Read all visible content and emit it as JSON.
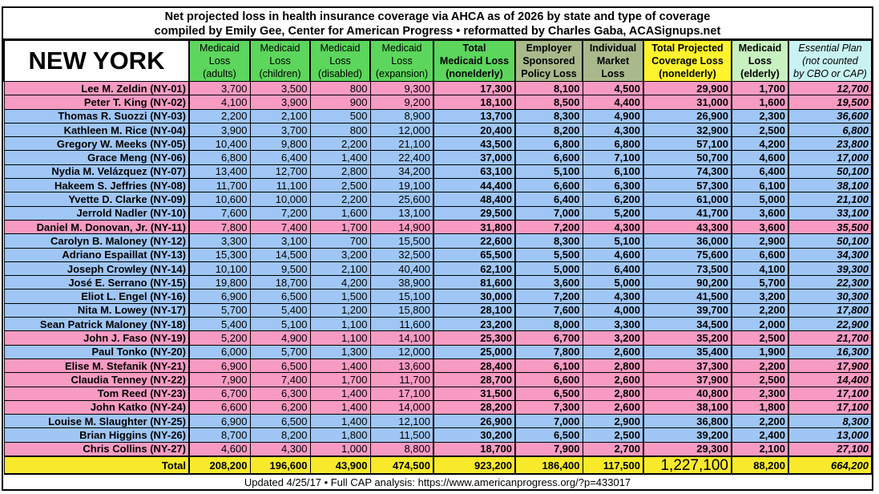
{
  "title_line1": "Net projected loss in health insurance coverage via AHCA as of 2026 by state and type of coverage",
  "title_line2": "compiled by Emily Gee, Center for American Progress  •  reformatted by Charles Gaba, ACASignups.net",
  "state": "NEW YORK",
  "colors": {
    "republican_row": "#f79bc3",
    "democrat_row": "#9fc6f5",
    "medicaid_header": "#5cd65c",
    "employer_header": "#aab98c",
    "total_header": "#fff22e",
    "elderly_header": "#c8f0c0",
    "essential_header": "#c9f3f3",
    "total_row": "#f8ea2b"
  },
  "columns": [
    {
      "lines": [
        "Medicaid",
        "Loss",
        "(adults)"
      ],
      "bg": "#5cd65c",
      "bold": false,
      "italic": false
    },
    {
      "lines": [
        "Medicaid",
        "Loss",
        "(children)"
      ],
      "bg": "#5cd65c",
      "bold": false,
      "italic": false
    },
    {
      "lines": [
        "Medicaid",
        "Loss",
        "(disabled)"
      ],
      "bg": "#5cd65c",
      "bold": false,
      "italic": false
    },
    {
      "lines": [
        "Medicaid",
        "Loss",
        "(expansion)"
      ],
      "bg": "#5cd65c",
      "bold": false,
      "italic": false
    },
    {
      "lines": [
        "Total",
        "Medicaid Loss",
        "(nonelderly)"
      ],
      "bg": "#5cd65c",
      "bold": true,
      "italic": false
    },
    {
      "lines": [
        "Employer",
        "Sponsored",
        "Policy Loss"
      ],
      "bg": "#aab98c",
      "bold": true,
      "italic": false
    },
    {
      "lines": [
        "Individual",
        "Market",
        "Loss"
      ],
      "bg": "#aab98c",
      "bold": true,
      "italic": false
    },
    {
      "lines": [
        "Total Projected",
        "Coverage Loss",
        "(nonelderly)"
      ],
      "bg": "#fff22e",
      "bold": true,
      "italic": false
    },
    {
      "lines": [
        "Medicaid",
        "Loss",
        "(elderly)"
      ],
      "bg": "#c8f0c0",
      "bold": true,
      "italic": false
    },
    {
      "lines": [
        "Essential Plan",
        "(not counted",
        "by CBO or CAP)"
      ],
      "bg": "#c9f3f3",
      "bold": false,
      "italic": true
    }
  ],
  "rows": [
    {
      "name": "Lee M. Zeldin (NY-01)",
      "color": "#f79bc3",
      "values": [
        "3,700",
        "3,500",
        "800",
        "9,300",
        "17,300",
        "8,100",
        "4,500",
        "29,900",
        "1,700",
        "12,700"
      ]
    },
    {
      "name": "Peter T. King (NY-02)",
      "color": "#f79bc3",
      "values": [
        "4,100",
        "3,900",
        "900",
        "9,200",
        "18,100",
        "8,500",
        "4,400",
        "31,000",
        "1,600",
        "19,500"
      ]
    },
    {
      "name": "Thomas R. Suozzi (NY-03)",
      "color": "#9fc6f5",
      "values": [
        "2,200",
        "2,100",
        "500",
        "8,900",
        "13,700",
        "8,300",
        "4,900",
        "26,900",
        "2,300",
        "36,600"
      ]
    },
    {
      "name": "Kathleen M. Rice (NY-04)",
      "color": "#9fc6f5",
      "values": [
        "3,900",
        "3,700",
        "800",
        "12,000",
        "20,400",
        "8,200",
        "4,300",
        "32,900",
        "2,500",
        "6,800"
      ]
    },
    {
      "name": "Gregory W. Meeks (NY-05)",
      "color": "#9fc6f5",
      "values": [
        "10,400",
        "9,800",
        "2,200",
        "21,100",
        "43,500",
        "6,800",
        "6,800",
        "57,100",
        "4,200",
        "23,800"
      ]
    },
    {
      "name": "Grace Meng (NY-06)",
      "color": "#9fc6f5",
      "values": [
        "6,800",
        "6,400",
        "1,400",
        "22,400",
        "37,000",
        "6,600",
        "7,100",
        "50,700",
        "4,600",
        "17,000"
      ]
    },
    {
      "name": "Nydia M. Velázquez (NY-07)",
      "color": "#9fc6f5",
      "values": [
        "13,400",
        "12,700",
        "2,800",
        "34,200",
        "63,100",
        "5,100",
        "6,100",
        "74,300",
        "6,400",
        "50,100"
      ]
    },
    {
      "name": "Hakeem S. Jeffries (NY-08)",
      "color": "#9fc6f5",
      "values": [
        "11,700",
        "11,100",
        "2,500",
        "19,100",
        "44,400",
        "6,600",
        "6,300",
        "57,300",
        "6,100",
        "38,100"
      ]
    },
    {
      "name": "Yvette D. Clarke (NY-09)",
      "color": "#9fc6f5",
      "values": [
        "10,600",
        "10,000",
        "2,200",
        "25,600",
        "48,400",
        "6,400",
        "6,200",
        "61,000",
        "5,000",
        "21,100"
      ]
    },
    {
      "name": "Jerrold Nadler (NY-10)",
      "color": "#9fc6f5",
      "values": [
        "7,600",
        "7,200",
        "1,600",
        "13,100",
        "29,500",
        "7,000",
        "5,200",
        "41,700",
        "3,600",
        "33,100"
      ]
    },
    {
      "name": "Daniel M. Donovan, Jr. (NY-11)",
      "color": "#f79bc3",
      "values": [
        "7,800",
        "7,400",
        "1,700",
        "14,900",
        "31,800",
        "7,200",
        "4,300",
        "43,300",
        "3,600",
        "35,500"
      ]
    },
    {
      "name": "Carolyn B. Maloney (NY-12)",
      "color": "#9fc6f5",
      "values": [
        "3,300",
        "3,100",
        "700",
        "15,500",
        "22,600",
        "8,300",
        "5,100",
        "36,000",
        "2,900",
        "50,100"
      ]
    },
    {
      "name": "Adriano Espaillat (NY-13)",
      "color": "#9fc6f5",
      "values": [
        "15,300",
        "14,500",
        "3,200",
        "32,500",
        "65,500",
        "5,500",
        "4,600",
        "75,600",
        "6,600",
        "34,300"
      ]
    },
    {
      "name": "Joseph Crowley (NY-14)",
      "color": "#9fc6f5",
      "values": [
        "10,100",
        "9,500",
        "2,100",
        "40,400",
        "62,100",
        "5,000",
        "6,400",
        "73,500",
        "4,100",
        "39,300"
      ]
    },
    {
      "name": "José E. Serrano (NY-15)",
      "color": "#9fc6f5",
      "values": [
        "19,800",
        "18,700",
        "4,200",
        "38,900",
        "81,600",
        "3,600",
        "5,000",
        "90,200",
        "5,700",
        "22,300"
      ]
    },
    {
      "name": "Eliot L. Engel (NY-16)",
      "color": "#9fc6f5",
      "values": [
        "6,900",
        "6,500",
        "1,500",
        "15,100",
        "30,000",
        "7,200",
        "4,300",
        "41,500",
        "3,200",
        "30,300"
      ]
    },
    {
      "name": "Nita M. Lowey (NY-17)",
      "color": "#9fc6f5",
      "values": [
        "5,700",
        "5,400",
        "1,200",
        "15,800",
        "28,100",
        "7,600",
        "4,000",
        "39,700",
        "2,200",
        "17,800"
      ]
    },
    {
      "name": "Sean Patrick Maloney (NY-18)",
      "color": "#9fc6f5",
      "values": [
        "5,400",
        "5,100",
        "1,100",
        "11,600",
        "23,200",
        "8,000",
        "3,300",
        "34,500",
        "2,000",
        "22,900"
      ]
    },
    {
      "name": "John J. Faso (NY-19)",
      "color": "#f79bc3",
      "values": [
        "5,200",
        "4,900",
        "1,100",
        "14,100",
        "25,300",
        "6,700",
        "3,200",
        "35,200",
        "2,500",
        "21,700"
      ]
    },
    {
      "name": "Paul Tonko (NY-20)",
      "color": "#9fc6f5",
      "values": [
        "6,000",
        "5,700",
        "1,300",
        "12,000",
        "25,000",
        "7,800",
        "2,600",
        "35,400",
        "1,900",
        "16,300"
      ]
    },
    {
      "name": "Elise M. Stefanik (NY-21)",
      "color": "#f79bc3",
      "values": [
        "6,900",
        "6,500",
        "1,400",
        "13,600",
        "28,400",
        "6,100",
        "2,800",
        "37,300",
        "2,200",
        "17,900"
      ]
    },
    {
      "name": "Claudia Tenney (NY-22)",
      "color": "#f79bc3",
      "values": [
        "7,900",
        "7,400",
        "1,700",
        "11,700",
        "28,700",
        "6,600",
        "2,600",
        "37,900",
        "2,500",
        "14,400"
      ]
    },
    {
      "name": "Tom Reed (NY-23)",
      "color": "#f79bc3",
      "values": [
        "6,700",
        "6,300",
        "1,400",
        "17,100",
        "31,500",
        "6,500",
        "2,800",
        "40,800",
        "2,300",
        "17,100"
      ]
    },
    {
      "name": "John Katko (NY-24)",
      "color": "#f79bc3",
      "values": [
        "6,600",
        "6,200",
        "1,400",
        "14,000",
        "28,200",
        "7,300",
        "2,600",
        "38,100",
        "1,800",
        "17,100"
      ]
    },
    {
      "name": "Louise M. Slaughter (NY-25)",
      "color": "#9fc6f5",
      "values": [
        "6,900",
        "6,500",
        "1,400",
        "12,100",
        "26,900",
        "7,000",
        "2,900",
        "36,800",
        "2,200",
        "8,300"
      ]
    },
    {
      "name": "Brian Higgins (NY-26)",
      "color": "#9fc6f5",
      "values": [
        "8,700",
        "8,200",
        "1,800",
        "11,500",
        "30,200",
        "6,500",
        "2,500",
        "39,200",
        "2,400",
        "13,000"
      ]
    },
    {
      "name": "Chris Collins (NY-27)",
      "color": "#f79bc3",
      "values": [
        "4,600",
        "4,300",
        "1,000",
        "8,800",
        "18,700",
        "7,900",
        "2,700",
        "29,300",
        "2,100",
        "27,100"
      ]
    }
  ],
  "total": {
    "label": "Total",
    "values": [
      "208,200",
      "196,600",
      "43,900",
      "474,500",
      "923,200",
      "186,400",
      "117,500",
      "1,227,100",
      "88,200",
      "664,200"
    ]
  },
  "footer": "Updated 4/25/17  •  Full CAP analysis: https://www.americanprogress.org/?p=433017"
}
